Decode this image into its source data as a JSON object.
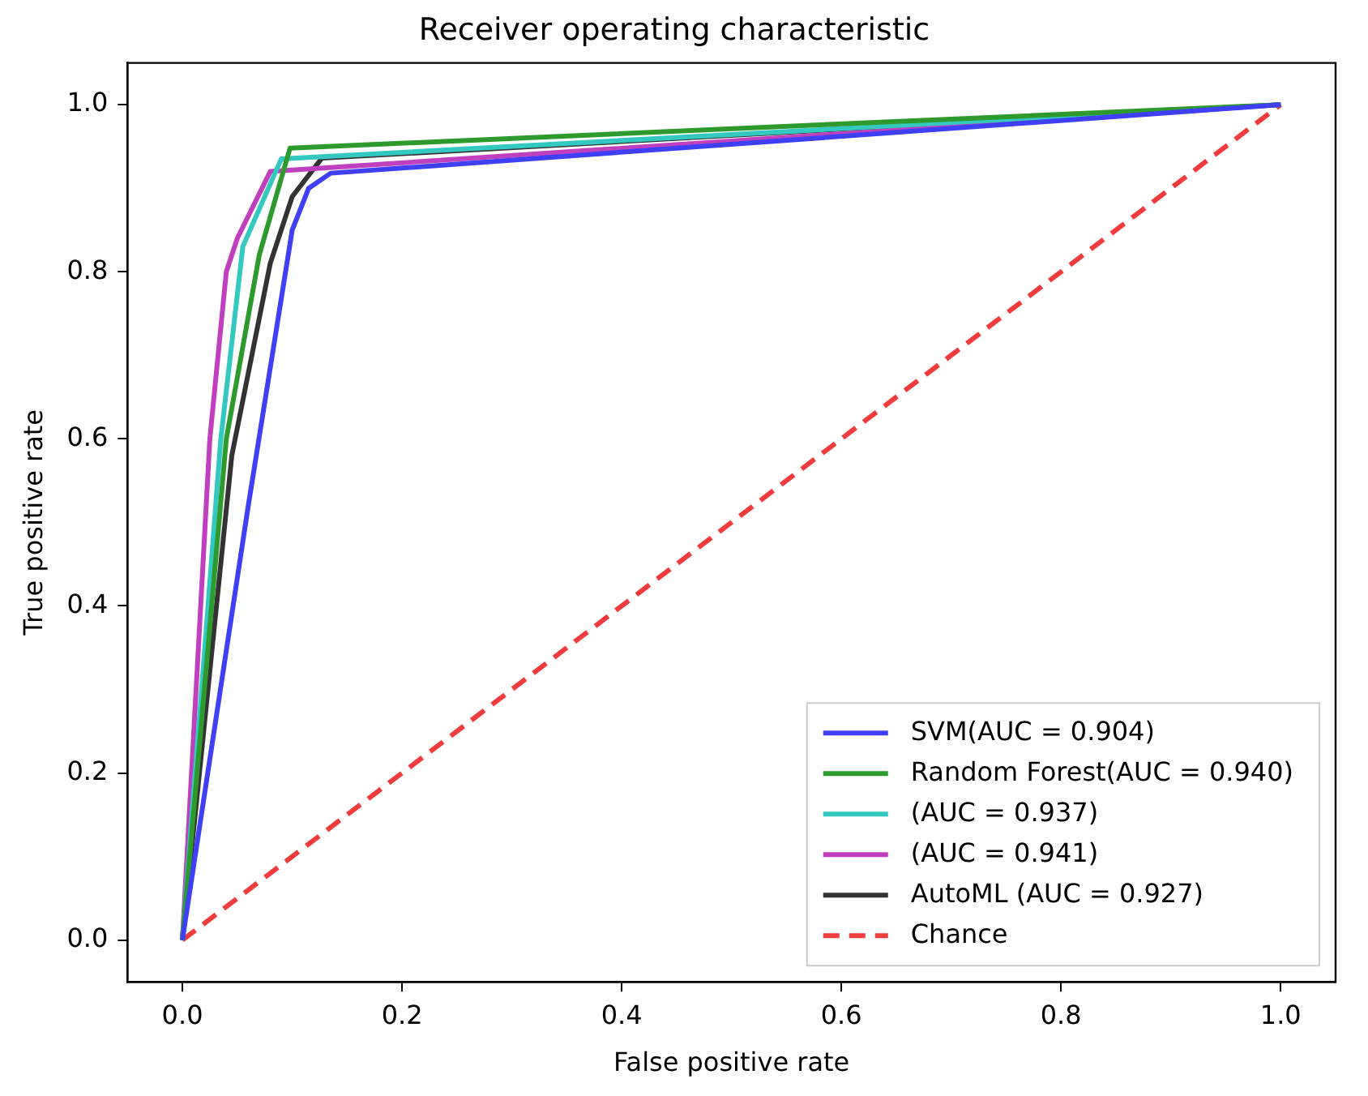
{
  "chart_data": {
    "type": "line",
    "title": "Receiver operating characteristic",
    "xlabel": "False positive rate",
    "ylabel": "True positive rate",
    "xlim": [
      -0.05,
      1.05
    ],
    "ylim": [
      -0.05,
      1.05
    ],
    "xticks": [
      {
        "value": 0,
        "label": "0.0"
      },
      {
        "value": 0.2,
        "label": "0.2"
      },
      {
        "value": 0.4,
        "label": "0.4"
      },
      {
        "value": 0.6,
        "label": "0.6"
      },
      {
        "value": 0.8,
        "label": "0.8"
      },
      {
        "value": 1,
        "label": "1.0"
      }
    ],
    "yticks": [
      {
        "value": 0,
        "label": "0.0"
      },
      {
        "value": 0.2,
        "label": "0.2"
      },
      {
        "value": 0.4,
        "label": "0.4"
      },
      {
        "value": 0.6,
        "label": "0.6"
      },
      {
        "value": 0.8,
        "label": "0.8"
      },
      {
        "value": 1,
        "label": "1.0"
      }
    ],
    "grid": false,
    "legend": "bottom right",
    "line_style": "solid",
    "marker": "none",
    "series": [
      {
        "name": "SVM(AUC = 0.904)",
        "color": "#3f3ff5",
        "x": [
          0,
          0.06,
          0.1,
          0.115,
          0.135,
          1
        ],
        "values": [
          0,
          0.52,
          0.85,
          0.9,
          0.918,
          1
        ]
      },
      {
        "name": "Random Forest(AUC = 0.940)",
        "color": "#2e9a2e",
        "x": [
          0,
          0.04,
          0.07,
          0.098,
          1
        ],
        "values": [
          0,
          0.6,
          0.82,
          0.948,
          1
        ]
      },
      {
        "name": "(AUC = 0.937)",
        "color": "#33c8c0",
        "x": [
          0,
          0.035,
          0.055,
          0.09,
          1
        ],
        "values": [
          0,
          0.6,
          0.83,
          0.935,
          1
        ]
      },
      {
        "name": "(AUC = 0.941)",
        "color": "#bf3fbf",
        "x": [
          0,
          0.025,
          0.04,
          0.05,
          0.08,
          1
        ],
        "values": [
          0,
          0.6,
          0.8,
          0.84,
          0.92,
          1
        ]
      },
      {
        "name": "AutoML (AUC = 0.927)",
        "color": "#333333",
        "x": [
          0,
          0.045,
          0.08,
          0.1,
          0.127,
          1
        ],
        "values": [
          0,
          0.58,
          0.81,
          0.89,
          0.936,
          1
        ]
      },
      {
        "name": "Chance",
        "color": "#f03c3c",
        "x": [
          0,
          1
        ],
        "values": [
          0,
          1
        ],
        "line_style": "dashed"
      }
    ]
  }
}
